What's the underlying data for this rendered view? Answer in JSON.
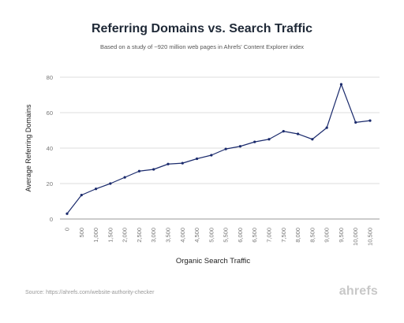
{
  "chart_data": {
    "type": "line",
    "title": "Referring Domains vs. Search Traffic",
    "subtitle": "Based on a study of ~920 million web pages in Ahrefs' Content Explorer index",
    "xlabel": "Organic Search Traffic",
    "ylabel": "Average Referring Domains",
    "x": [
      "0",
      "500",
      "1,000",
      "1,500",
      "2,000",
      "2,500",
      "3,000",
      "3,500",
      "4,000",
      "4,500",
      "5,000",
      "5,500",
      "6,000",
      "6,500",
      "7,000",
      "7,500",
      "8,000",
      "8,500",
      "9,000",
      "9,500",
      "10,000",
      "10,500"
    ],
    "series": [
      {
        "values": [
          3,
          13.5,
          17,
          20,
          23.5,
          27,
          28,
          31,
          31.5,
          34,
          36,
          39.5,
          41,
          43.5,
          45,
          49.5,
          48,
          45,
          51.5,
          76,
          54.5,
          55.5
        ]
      }
    ],
    "ylim": [
      0,
      80
    ],
    "yticks": [
      "0",
      "20",
      "40",
      "60",
      "80"
    ],
    "grid": true,
    "line_color": "#1a2a6c"
  },
  "footer": {
    "source": "Source: https://ahrefs.com/website-authority-checker",
    "brand": "ahrefs"
  }
}
